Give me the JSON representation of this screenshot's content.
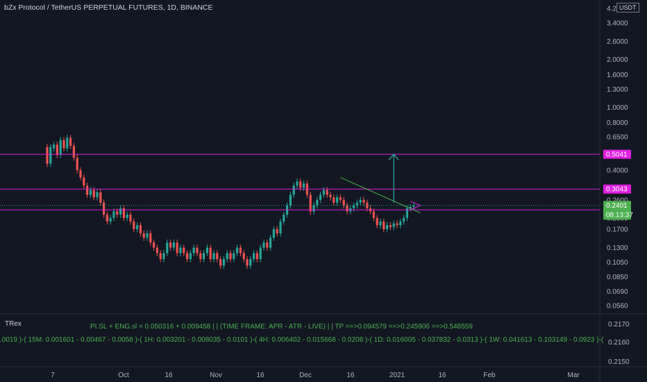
{
  "header": {
    "title": "bZx Protocol / TetherUS PERPETUAL FUTURES, 1D, BINANCE",
    "currency": "USDT"
  },
  "colors": {
    "background": "#131722",
    "up": "#26a69a",
    "down": "#ef5350",
    "level": "#e020e0",
    "trendline": "#4caf50",
    "target_arrow": "#26a69a",
    "indicator_text": "#4caf50",
    "price_tag": "#4caf50"
  },
  "chart_data": {
    "type": "candlestick",
    "scale": "log",
    "price_axis": {
      "ylim": [
        0.056,
        4.2
      ],
      "ticks": [
        "4.2000",
        "3.4000",
        "2.6000",
        "2.0000",
        "1.6000",
        "1.3000",
        "1.0000",
        "0.8000",
        "0.6500",
        "0.5000",
        "0.4000",
        "0.3000",
        "0.2600",
        "0.2000",
        "0.1700",
        "0.1300",
        "0.1050",
        "0.0850",
        "0.0690",
        "0.0560"
      ]
    },
    "time_axis": {
      "labels": [
        "7",
        "Oct",
        "16",
        "Nov",
        "16",
        "Dec",
        "16",
        "2021",
        "16",
        "Feb",
        "Mar"
      ]
    },
    "levels": [
      {
        "label": "0.5041",
        "price": 0.5041
      },
      {
        "label": "0.3043",
        "price": 0.3043
      },
      {
        "label": "0.2251",
        "price": 0.2251
      }
    ],
    "last_price": {
      "label": "0.2401",
      "price": 0.2401
    },
    "countdown": "08:13:37",
    "candles": [
      [
        0.56,
        0.44
      ],
      [
        0.44,
        0.56
      ],
      [
        0.55,
        0.58
      ],
      [
        0.58,
        0.5
      ],
      [
        0.5,
        0.62
      ],
      [
        0.62,
        0.55
      ],
      [
        0.55,
        0.64
      ],
      [
        0.64,
        0.57
      ],
      [
        0.57,
        0.48
      ],
      [
        0.48,
        0.4
      ],
      [
        0.4,
        0.36
      ],
      [
        0.36,
        0.32
      ],
      [
        0.32,
        0.28
      ],
      [
        0.28,
        0.3
      ],
      [
        0.3,
        0.27
      ],
      [
        0.27,
        0.29
      ],
      [
        0.29,
        0.25
      ],
      [
        0.25,
        0.21
      ],
      [
        0.21,
        0.19
      ],
      [
        0.19,
        0.2
      ],
      [
        0.2,
        0.22
      ],
      [
        0.22,
        0.21
      ],
      [
        0.21,
        0.23
      ],
      [
        0.23,
        0.2
      ],
      [
        0.2,
        0.21
      ],
      [
        0.21,
        0.19
      ],
      [
        0.19,
        0.17
      ],
      [
        0.17,
        0.18
      ],
      [
        0.18,
        0.16
      ],
      [
        0.16,
        0.15
      ],
      [
        0.15,
        0.16
      ],
      [
        0.16,
        0.14
      ],
      [
        0.14,
        0.13
      ],
      [
        0.13,
        0.12
      ],
      [
        0.12,
        0.11
      ],
      [
        0.11,
        0.12
      ],
      [
        0.12,
        0.14
      ],
      [
        0.14,
        0.13
      ],
      [
        0.13,
        0.14
      ],
      [
        0.14,
        0.12
      ],
      [
        0.12,
        0.13
      ],
      [
        0.13,
        0.12
      ],
      [
        0.12,
        0.11
      ],
      [
        0.11,
        0.12
      ],
      [
        0.12,
        0.13
      ],
      [
        0.13,
        0.12
      ],
      [
        0.12,
        0.11
      ],
      [
        0.11,
        0.12
      ],
      [
        0.12,
        0.13
      ],
      [
        0.13,
        0.11
      ],
      [
        0.11,
        0.12
      ],
      [
        0.12,
        0.11
      ],
      [
        0.11,
        0.1
      ],
      [
        0.1,
        0.11
      ],
      [
        0.11,
        0.12
      ],
      [
        0.12,
        0.11
      ],
      [
        0.11,
        0.12
      ],
      [
        0.12,
        0.13
      ],
      [
        0.13,
        0.12
      ],
      [
        0.12,
        0.11
      ],
      [
        0.11,
        0.1
      ],
      [
        0.1,
        0.11
      ],
      [
        0.11,
        0.12
      ],
      [
        0.12,
        0.11
      ],
      [
        0.11,
        0.13
      ],
      [
        0.13,
        0.14
      ],
      [
        0.14,
        0.13
      ],
      [
        0.13,
        0.15
      ],
      [
        0.15,
        0.17
      ],
      [
        0.17,
        0.16
      ],
      [
        0.16,
        0.19
      ],
      [
        0.19,
        0.21
      ],
      [
        0.21,
        0.24
      ],
      [
        0.24,
        0.28
      ],
      [
        0.28,
        0.32
      ],
      [
        0.32,
        0.34
      ],
      [
        0.34,
        0.31
      ],
      [
        0.31,
        0.33
      ],
      [
        0.33,
        0.28
      ],
      [
        0.28,
        0.22
      ],
      [
        0.22,
        0.24
      ],
      [
        0.24,
        0.26
      ],
      [
        0.26,
        0.28
      ],
      [
        0.28,
        0.3
      ],
      [
        0.3,
        0.28
      ],
      [
        0.28,
        0.27
      ],
      [
        0.27,
        0.25
      ],
      [
        0.25,
        0.27
      ],
      [
        0.27,
        0.26
      ],
      [
        0.26,
        0.24
      ],
      [
        0.24,
        0.22
      ],
      [
        0.22,
        0.23
      ],
      [
        0.23,
        0.24
      ],
      [
        0.24,
        0.25
      ],
      [
        0.25,
        0.26
      ],
      [
        0.26,
        0.25
      ],
      [
        0.25,
        0.23
      ],
      [
        0.23,
        0.22
      ],
      [
        0.22,
        0.2
      ],
      [
        0.2,
        0.18
      ],
      [
        0.18,
        0.19
      ],
      [
        0.19,
        0.17
      ],
      [
        0.17,
        0.18
      ],
      [
        0.18,
        0.175
      ],
      [
        0.175,
        0.185
      ],
      [
        0.185,
        0.18
      ],
      [
        0.18,
        0.19
      ],
      [
        0.19,
        0.2
      ],
      [
        0.2,
        0.23
      ],
      [
        0.23,
        0.235
      ],
      [
        0.235,
        0.24
      ]
    ],
    "annotations": {
      "trendline": {
        "from": {
          "candle": 88,
          "price": 0.36
        },
        "to": {
          "candle": 112,
          "price": 0.215
        }
      },
      "target_arrow": {
        "candle": 104,
        "from_price": 0.25,
        "to_price": 0.5041
      },
      "triangle": [
        {
          "candle": 109,
          "price": 0.255
        },
        {
          "candle": 112,
          "price": 0.24
        },
        {
          "candle": 109,
          "price": 0.225
        }
      ]
    }
  },
  "indicator_panel": {
    "name": "TRex",
    "line1": "PI.SL + ENG.sl = 0.050316 + 0.009458 | |       (TIME FRAME: APR  -  ATR  -  LIVE)      | | TP ==>0.094579  ==>0.245906  ==>0.548559",
    "line2": ".0019 )-( 15M: 0.001601  -  0.00467  -  0.0058 )-( 1H: 0.003201  -  0.008035  -  0.0101 )-( 4H: 0.006402  -  0.015668  -  0.0208 )-( 1D: 0.016005  -  0.037832  -  0.0313 )-( 1W: 0.041613  -  0.103149  -  0.0923 )-(",
    "scale_ticks": [
      "0.2170",
      "0.2160",
      "0.2150"
    ]
  }
}
